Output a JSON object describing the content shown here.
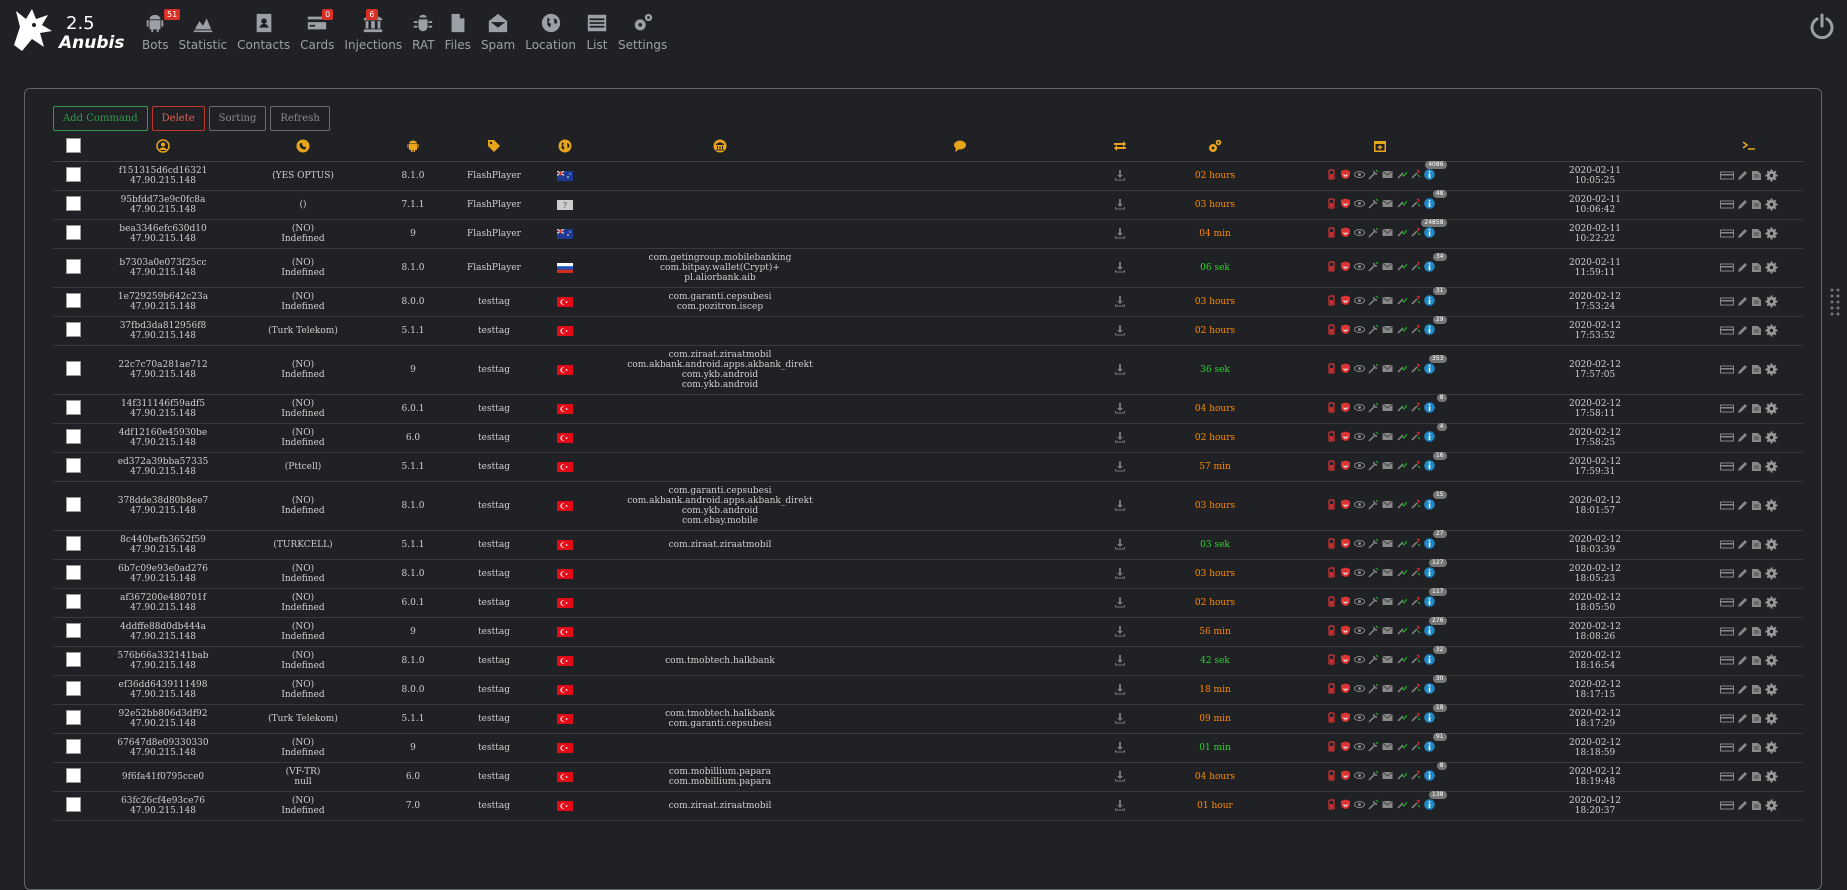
{
  "app": {
    "version": "2.5",
    "brand": "Anubis"
  },
  "nav": [
    {
      "label": "Bots",
      "icon": "android-icon",
      "badge": "51"
    },
    {
      "label": "Statistic",
      "icon": "chart-area-icon",
      "badge": ""
    },
    {
      "label": "Contacts",
      "icon": "contacts-icon",
      "badge": ""
    },
    {
      "label": "Cards",
      "icon": "credit-card-icon",
      "badge": "0"
    },
    {
      "label": "Injections",
      "icon": "bank-icon",
      "badge": "6"
    },
    {
      "label": "RAT",
      "icon": "bug-icon",
      "badge": ""
    },
    {
      "label": "Files",
      "icon": "file-icon",
      "badge": ""
    },
    {
      "label": "Spam",
      "icon": "envelope-open-icon",
      "badge": ""
    },
    {
      "label": "Location",
      "icon": "globe-icon",
      "badge": ""
    },
    {
      "label": "List",
      "icon": "list-icon",
      "badge": ""
    },
    {
      "label": "Settings",
      "icon": "cogs-icon",
      "badge": ""
    }
  ],
  "toolbar": {
    "add": "Add Command",
    "delete": "Delete",
    "sorting": "Sorting",
    "refresh": "Refresh"
  },
  "colors": {
    "accent_header_icons": "#e8a51c",
    "orange_time": "#ff8a00",
    "green_time": "#2ed12e"
  },
  "rows": [
    {
      "id": "f151315d6cd16321",
      "ip": "47.90.215.148",
      "op1": "(YES OPTUS)",
      "op2": "",
      "ver": "8.1.0",
      "tag": "FlashPlayer",
      "flag": "au",
      "apps": [],
      "time": "02 hours",
      "tc": "orange",
      "cnt": "4086",
      "date": "2020-02-11",
      "clock": "10:05:25"
    },
    {
      "id": "95bfdd73e9c0fc8a",
      "ip": "47.90.215.148",
      "op1": "()",
      "op2": "",
      "ver": "7.1.1",
      "tag": "FlashPlayer",
      "flag": "unknown",
      "apps": [],
      "time": "03 hours",
      "tc": "orange",
      "cnt": "48",
      "date": "2020-02-11",
      "clock": "10:06:42"
    },
    {
      "id": "bea3346efc630d10",
      "ip": "47.90.215.148",
      "op1": "(NO)",
      "op2": "Indefined",
      "ver": "9",
      "tag": "FlashPlayer",
      "flag": "au",
      "apps": [],
      "time": "04 min",
      "tc": "orange",
      "cnt": "24858",
      "date": "2020-02-11",
      "clock": "10:22:22"
    },
    {
      "id": "b7303a0e073f25cc",
      "ip": "47.90.215.148",
      "op1": "(NO)",
      "op2": "Indefined",
      "ver": "8.1.0",
      "tag": "FlashPlayer",
      "flag": "ru",
      "apps": [
        "com.getingroup.mobilebanking",
        "com.bitpay.wallet(Crypt)+",
        "pl.aliorbank.aib"
      ],
      "time": "06 sek",
      "tc": "green",
      "cnt": "34",
      "date": "2020-02-11",
      "clock": "11:59:11"
    },
    {
      "id": "1e729259b642c23a",
      "ip": "47.90.215.148",
      "op1": "(NO)",
      "op2": "Indefined",
      "ver": "8.0.0",
      "tag": "testtag",
      "flag": "tr",
      "apps": [
        "com.garanti.cepsubesi",
        "com.pozitron.iscep"
      ],
      "time": "03 hours",
      "tc": "orange",
      "cnt": "31",
      "date": "2020-02-12",
      "clock": "17:53:24"
    },
    {
      "id": "37fbd3da812956f8",
      "ip": "47.90.215.148",
      "op1": "(Turk Telekom)",
      "op2": "",
      "ver": "5.1.1",
      "tag": "testtag",
      "flag": "tr",
      "apps": [],
      "time": "02 hours",
      "tc": "orange",
      "cnt": "29",
      "date": "2020-02-12",
      "clock": "17:53:52"
    },
    {
      "id": "22c7c70a281ae712",
      "ip": "47.90.215.148",
      "op1": "(NO)",
      "op2": "Indefined",
      "ver": "9",
      "tag": "testtag",
      "flag": "tr",
      "apps": [
        "com.ziraat.ziraatmobil",
        "com.akbank.android.apps.akbank_direkt",
        "com.ykb.android",
        "com.ykb.android"
      ],
      "time": "36 sek",
      "tc": "green",
      "cnt": "353",
      "date": "2020-02-12",
      "clock": "17:57:05"
    },
    {
      "id": "14f311146f59adf5",
      "ip": "47.90.215.148",
      "op1": "(NO)",
      "op2": "Indefined",
      "ver": "6.0.1",
      "tag": "testtag",
      "flag": "tr",
      "apps": [],
      "time": "04 hours",
      "tc": "orange",
      "cnt": "8",
      "date": "2020-02-12",
      "clock": "17:58:11"
    },
    {
      "id": "4df12160e45930be",
      "ip": "47.90.215.148",
      "op1": "(NO)",
      "op2": "Indefined",
      "ver": "6.0",
      "tag": "testtag",
      "flag": "tr",
      "apps": [],
      "time": "02 hours",
      "tc": "orange",
      "cnt": "4",
      "date": "2020-02-12",
      "clock": "17:58:25"
    },
    {
      "id": "ed372a39bba57335",
      "ip": "47.90.215.148",
      "op1": "(Pttcell)",
      "op2": "",
      "ver": "5.1.1",
      "tag": "testtag",
      "flag": "tr",
      "apps": [],
      "time": "57 min",
      "tc": "orange",
      "cnt": "16",
      "date": "2020-02-12",
      "clock": "17:59:31"
    },
    {
      "id": "378dde38d80b8ee7",
      "ip": "47.90.215.148",
      "op1": "(NO)",
      "op2": "Indefined",
      "ver": "8.1.0",
      "tag": "testtag",
      "flag": "tr",
      "apps": [
        "com.garanti.cepsubesi",
        "com.akbank.android.apps.akbank_direkt",
        "com.ykb.android",
        "com.ebay.mobile"
      ],
      "time": "03 hours",
      "tc": "orange",
      "cnt": "15",
      "date": "2020-02-12",
      "clock": "18:01:57"
    },
    {
      "id": "8c440befb3652f59",
      "ip": "47.90.215.148",
      "op1": "(TURKCELL)",
      "op2": "",
      "ver": "5.1.1",
      "tag": "testtag",
      "flag": "tr",
      "apps": [
        "com.ziraat.ziraatmobil"
      ],
      "time": "03 sek",
      "tc": "green",
      "cnt": "27",
      "date": "2020-02-12",
      "clock": "18:03:39"
    },
    {
      "id": "6b7c09e93e0ad276",
      "ip": "47.90.215.148",
      "op1": "(NO)",
      "op2": "Indefined",
      "ver": "8.1.0",
      "tag": "testtag",
      "flag": "tr",
      "apps": [],
      "time": "03 hours",
      "tc": "orange",
      "cnt": "127",
      "date": "2020-02-12",
      "clock": "18:05:23"
    },
    {
      "id": "af367200e480701f",
      "ip": "47.90.215.148",
      "op1": "(NO)",
      "op2": "Indefined",
      "ver": "6.0.1",
      "tag": "testtag",
      "flag": "tr",
      "apps": [],
      "time": "02 hours",
      "tc": "orange",
      "cnt": "117",
      "date": "2020-02-12",
      "clock": "18:05:50"
    },
    {
      "id": "4ddffe88d0db444a",
      "ip": "47.90.215.148",
      "op1": "(NO)",
      "op2": "Indefined",
      "ver": "9",
      "tag": "testtag",
      "flag": "tr",
      "apps": [],
      "time": "56 min",
      "tc": "orange",
      "cnt": "276",
      "date": "2020-02-12",
      "clock": "18:08:26"
    },
    {
      "id": "576b66a332141bab",
      "ip": "47.90.215.148",
      "op1": "(NO)",
      "op2": "Indefined",
      "ver": "8.1.0",
      "tag": "testtag",
      "flag": "tr",
      "apps": [
        "com.tmobtech.halkbank"
      ],
      "time": "42 sek",
      "tc": "green",
      "cnt": "32",
      "date": "2020-02-12",
      "clock": "18:16:54"
    },
    {
      "id": "ef36dd6439111498",
      "ip": "47.90.215.148",
      "op1": "(NO)",
      "op2": "Indefined",
      "ver": "8.0.0",
      "tag": "testtag",
      "flag": "tr",
      "apps": [],
      "time": "18 min",
      "tc": "orange",
      "cnt": "30",
      "date": "2020-02-12",
      "clock": "18:17:15"
    },
    {
      "id": "92e52bb806d3df92",
      "ip": "47.90.215.148",
      "op1": "(Turk Telekom)",
      "op2": "",
      "ver": "5.1.1",
      "tag": "testtag",
      "flag": "tr",
      "apps": [
        "com.tmobtech.halkbank",
        "com.garanti.cepsubesi"
      ],
      "time": "09 min",
      "tc": "orange",
      "cnt": "18",
      "date": "2020-02-12",
      "clock": "18:17:29"
    },
    {
      "id": "67647d8e09330330",
      "ip": "47.90.215.148",
      "op1": "(NO)",
      "op2": "Indefined",
      "ver": "9",
      "tag": "testtag",
      "flag": "tr",
      "apps": [],
      "time": "01 min",
      "tc": "green",
      "cnt": "91",
      "date": "2020-02-12",
      "clock": "18:18:59"
    },
    {
      "id": "9f6fa41f0795cce0",
      "ip": "",
      "op1": "(VF-TR)",
      "op2": "null",
      "ver": "6.0",
      "tag": "testtag",
      "flag": "tr",
      "apps": [
        "com.mobillium.papara",
        "com.mobillium.papara"
      ],
      "time": "04 hours",
      "tc": "orange",
      "cnt": "8",
      "date": "2020-02-12",
      "clock": "18:19:48"
    },
    {
      "id": "63fc26cf4e93ce76",
      "ip": "47.90.215.148",
      "op1": "(NO)",
      "op2": "Indefined",
      "ver": "7.0",
      "tag": "testtag",
      "flag": "tr",
      "apps": [
        "com.ziraat.ziraatmobil"
      ],
      "time": "01 hour",
      "tc": "orange",
      "cnt": "138",
      "date": "2020-02-12",
      "clock": "18:20:37"
    }
  ]
}
